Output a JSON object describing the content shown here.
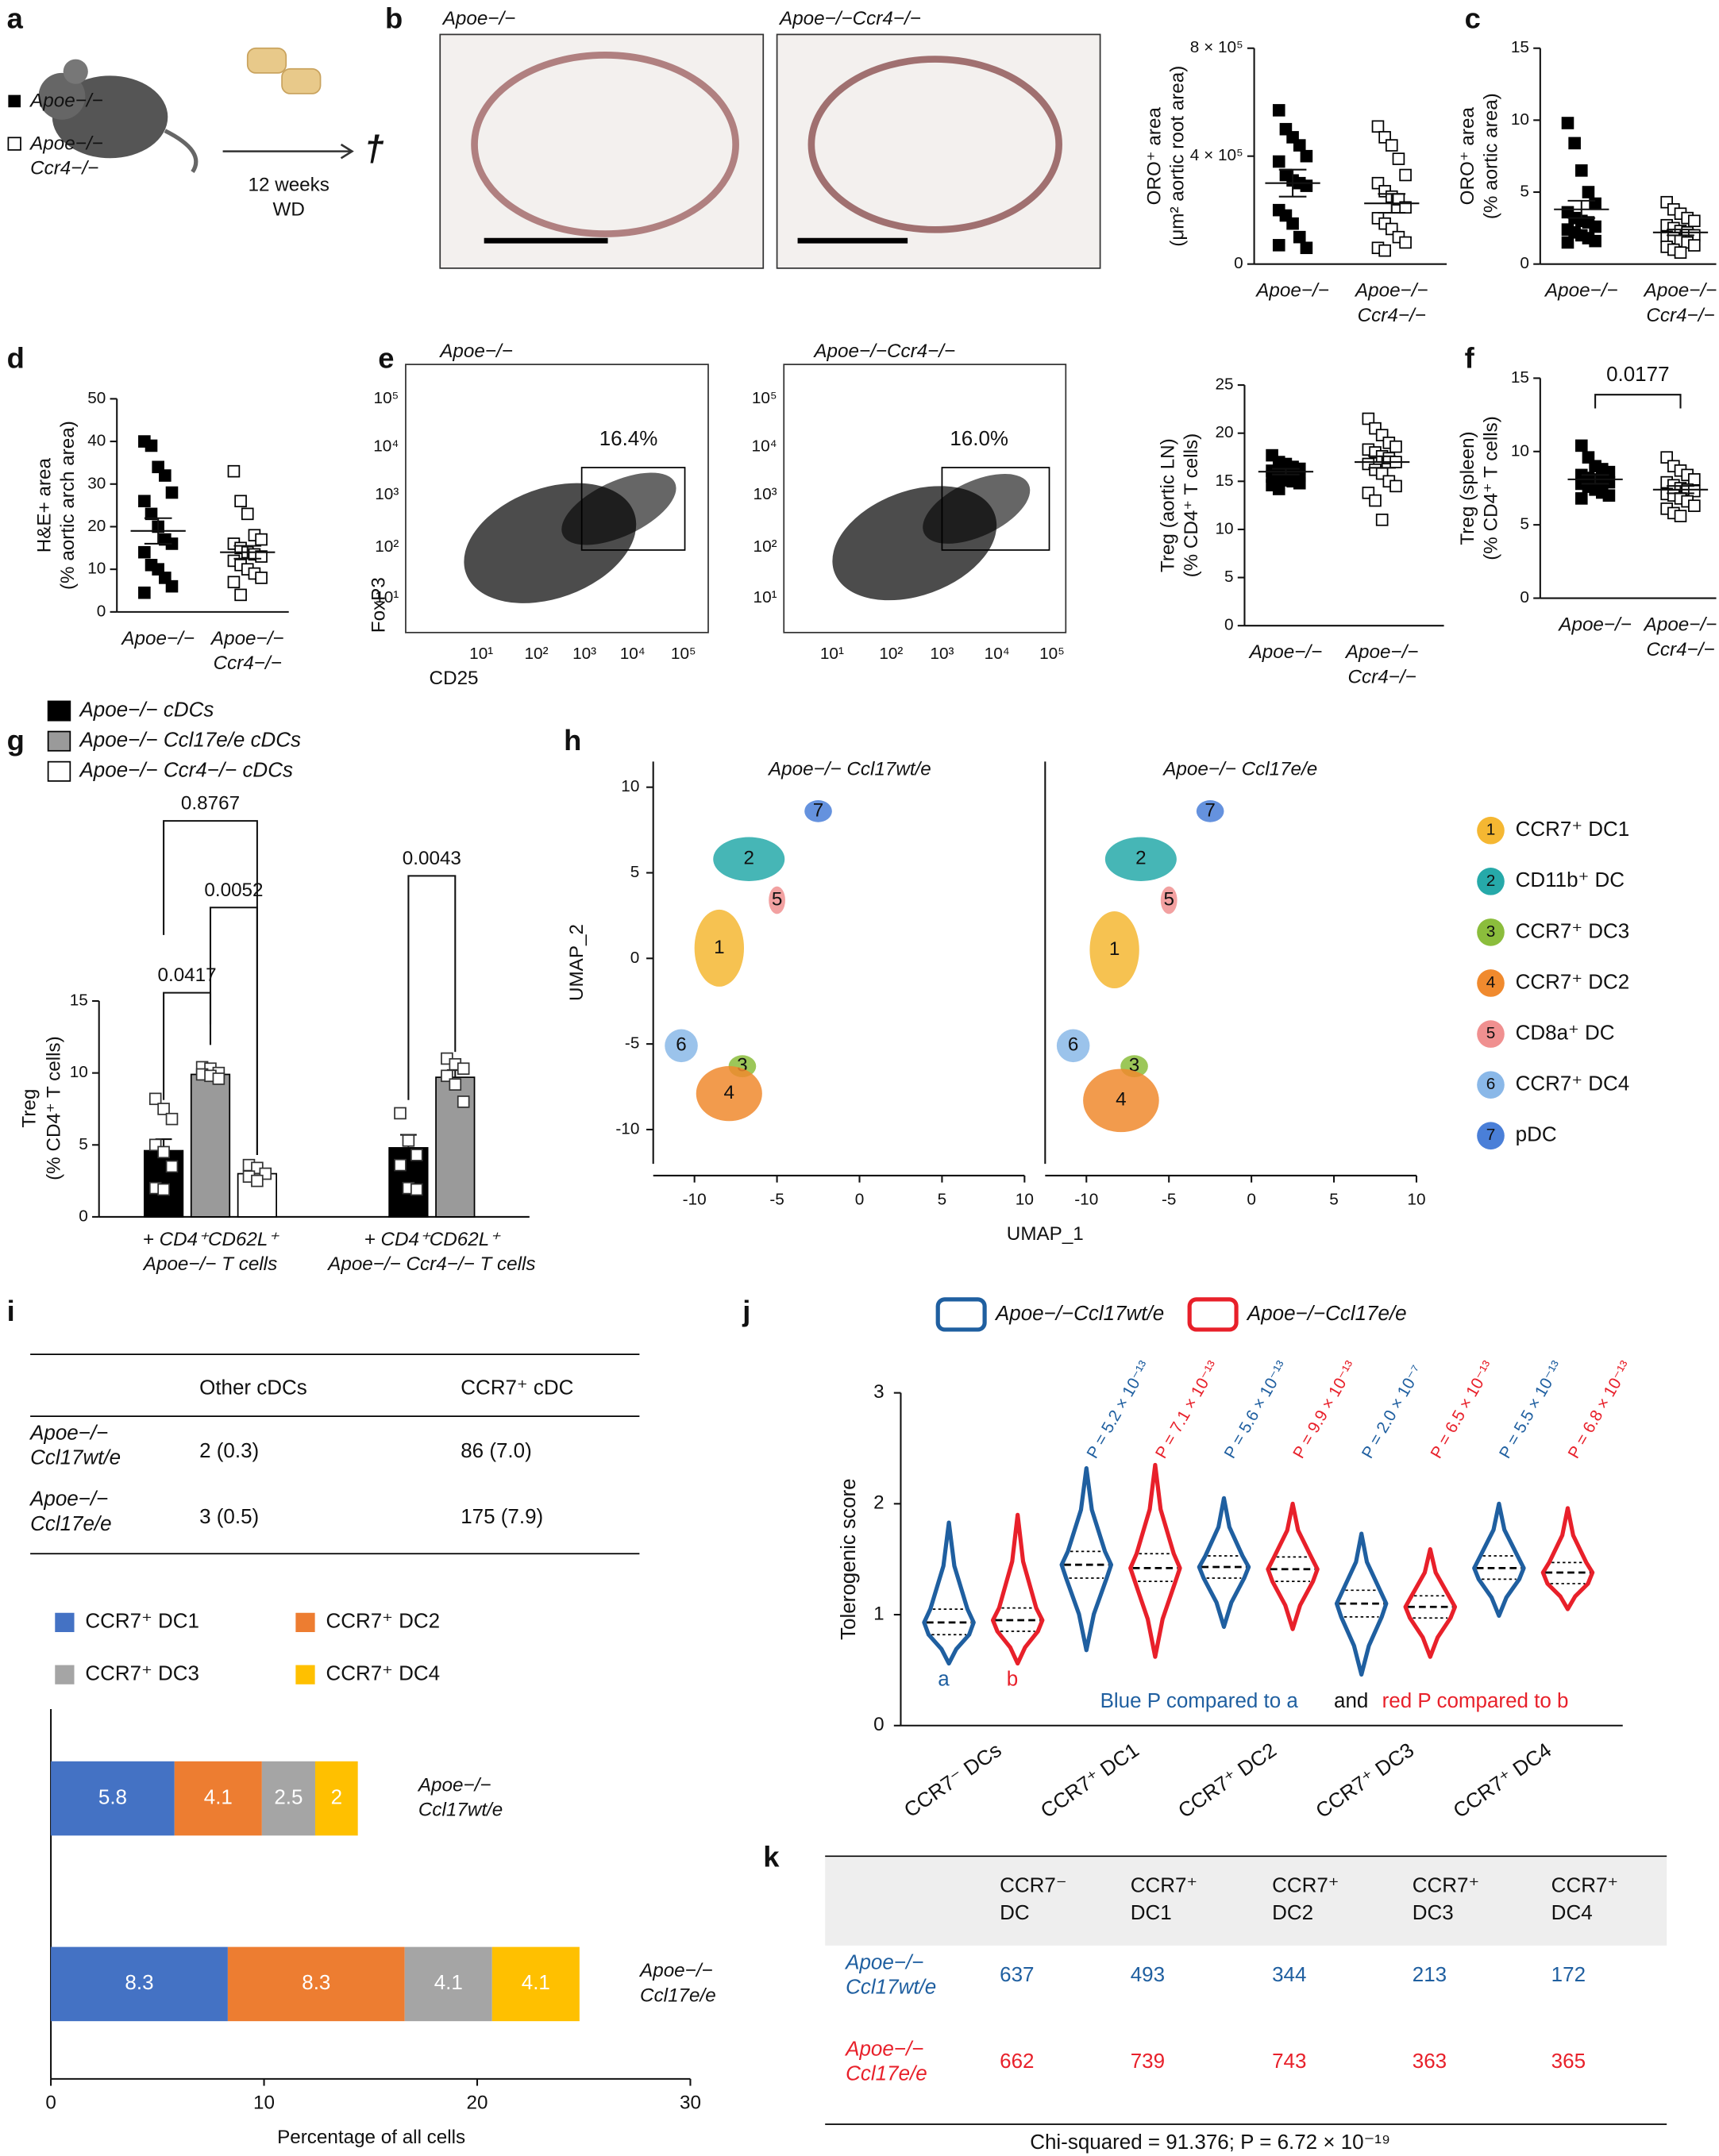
{
  "panels": [
    "a",
    "b",
    "c",
    "d",
    "e",
    "f",
    "g",
    "h",
    "i",
    "j",
    "k"
  ],
  "schematic": {
    "groups": [
      [
        "Apoe−/−"
      ],
      [
        "Apoe−/−",
        "Ccr4−/−"
      ]
    ],
    "treatment": [
      "12 weeks",
      "WD"
    ],
    "endpoint": "†"
  },
  "histology": {
    "titles": [
      "Apoe−/−",
      "Apoe−/−Ccr4−/−"
    ]
  },
  "flow": {
    "titles": [
      "Apoe−/−",
      "Apoe−/−Ccr4−/−"
    ],
    "gates": [
      "16.4%",
      "16.0%"
    ],
    "ticks": [
      "10¹",
      "10²",
      "10³",
      "10⁴",
      "10⁵"
    ],
    "xlabel": "CD25",
    "ylabel": "FoxP3"
  },
  "chart_data": [
    {
      "type": "dot",
      "ylabel": [
        "ORO⁺ area",
        "(μm² aortic root area)"
      ],
      "categories": [
        [
          "Apoe−/−"
        ],
        [
          "Apoe−/−",
          "Ccr4−/−"
        ]
      ],
      "markers": [
        "filled",
        "open"
      ],
      "ylim": [
        0,
        800000
      ],
      "yticks": [
        0,
        {
          "value": 400000,
          "label": "4 × 10⁵"
        },
        {
          "value": 800000,
          "label": "8 × 10⁵"
        }
      ],
      "values": [
        [
          570000,
          500000,
          470000,
          440000,
          400000,
          380000,
          330000,
          310000,
          300000,
          290000,
          200000,
          180000,
          150000,
          100000,
          60000,
          70000
        ],
        [
          510000,
          470000,
          440000,
          390000,
          330000,
          300000,
          270000,
          250000,
          240000,
          210000,
          170000,
          150000,
          130000,
          100000,
          80000,
          60000,
          50000
        ]
      ],
      "means": [
        300000,
        225000
      ],
      "sems": [
        50000,
        35000
      ]
    },
    {
      "type": "dot",
      "ylabel": [
        "ORO⁺ area",
        "(% aortic area)"
      ],
      "categories": [
        [
          "Apoe−/−"
        ],
        [
          "Apoe−/−",
          "Ccr4−/−"
        ]
      ],
      "markers": [
        "filled",
        "open"
      ],
      "ylim": [
        0,
        15
      ],
      "yticks": [
        0,
        5,
        10,
        15
      ],
      "values": [
        [
          9.8,
          8.4,
          6.5,
          5.0,
          4.2,
          3.6,
          3.2,
          3.0,
          2.9,
          2.6,
          2.4,
          2.2,
          2.0,
          1.8,
          1.6,
          1.5
        ],
        [
          4.3,
          3.8,
          3.5,
          3.2,
          3.0,
          2.7,
          2.5,
          2.3,
          2.2,
          2.0,
          1.9,
          1.8,
          1.6,
          1.5,
          1.3,
          1.2,
          1.0,
          0.8
        ]
      ],
      "means": [
        3.8,
        2.2
      ],
      "sems": [
        0.6,
        0.2
      ]
    },
    {
      "type": "dot",
      "ylabel": [
        "H&E+ area",
        "(% aortic arch area)"
      ],
      "categories": [
        [
          "Apoe−/−"
        ],
        [
          "Apoe−/−",
          "Ccr4−/−"
        ]
      ],
      "markers": [
        "filled",
        "open"
      ],
      "ylim": [
        0,
        50
      ],
      "yticks": [
        0,
        10,
        20,
        30,
        40,
        50
      ],
      "values": [
        [
          40,
          39,
          34,
          32,
          28,
          26,
          23,
          20,
          17,
          16,
          14,
          11,
          10,
          8,
          6,
          4.5
        ],
        [
          33,
          26,
          23,
          18,
          17,
          16,
          15,
          14,
          13.5,
          13,
          12,
          11,
          10,
          9,
          8,
          7,
          4
        ]
      ],
      "means": [
        19,
        14
      ],
      "sems": [
        3,
        1.5
      ]
    },
    {
      "type": "dot",
      "ylabel": [
        "Treg (aortic LN)",
        "(% CD4⁺ T cells)"
      ],
      "categories": [
        [
          "Apoe−/−"
        ],
        [
          "Apoe−/−",
          "Ccr4−/−"
        ]
      ],
      "markers": [
        "filled",
        "open"
      ],
      "ylim": [
        0,
        25
      ],
      "yticks": [
        0,
        5,
        10,
        15,
        20,
        25
      ],
      "values": [
        [
          17.7,
          17,
          16.8,
          16.5,
          16.3,
          16.1,
          16,
          15.9,
          15.8,
          15.6,
          15.5,
          15.3,
          15.1,
          15,
          14.8,
          14.6,
          14.2
        ],
        [
          21.5,
          20.5,
          19.8,
          19,
          18.6,
          18.3,
          18,
          17.6,
          17.4,
          17,
          16.8,
          16.2,
          15.8,
          15,
          14.5,
          13.8,
          13,
          11
        ]
      ],
      "means": [
        16,
        17
      ],
      "sems": [
        0.3,
        0.6
      ]
    },
    {
      "type": "dot",
      "ylabel": [
        "Treg (spleen)",
        "(% CD4⁺ T cells)"
      ],
      "categories": [
        [
          "Apoe−/−"
        ],
        [
          "Apoe−/−",
          "Ccr4−/−"
        ]
      ],
      "markers": [
        "filled",
        "open"
      ],
      "ylim": [
        0,
        15
      ],
      "yticks": [
        0,
        5,
        10,
        15
      ],
      "annotation": "0.0177",
      "values": [
        [
          10.4,
          9.6,
          9,
          8.8,
          8.6,
          8.4,
          8.2,
          8.1,
          8,
          7.9,
          7.8,
          7.6,
          7.4,
          7.2,
          7,
          6.8
        ],
        [
          9.6,
          9,
          8.7,
          8.4,
          8.1,
          7.9,
          7.7,
          7.5,
          7.4,
          7.3,
          7.1,
          7,
          6.8,
          6.6,
          6.3,
          6.1,
          5.8,
          5.6
        ]
      ],
      "means": [
        8.1,
        7.4
      ],
      "sems": [
        0.3,
        0.25
      ]
    },
    {
      "type": "bar",
      "ylabel": [
        "Treg",
        "(% CD4⁺ T cells)"
      ],
      "ylim": [
        0,
        15
      ],
      "yticks": [
        0,
        5,
        10,
        15
      ],
      "groups": [
        [
          "+ CD4⁺CD62L⁺",
          "Apoe−/− T cells"
        ],
        [
          "+ CD4⁺CD62L⁺",
          "Apoe−/− Ccr4−/− T cells"
        ]
      ],
      "series": [
        {
          "name": "Apoe−/− cDCs",
          "color": "#000000",
          "values": [
            4.6,
            4.8
          ],
          "errors": [
            0.8,
            0.9
          ],
          "points": [
            [
              8.2,
              7.5,
              6.8,
              5,
              4.5,
              3.5,
              2,
              1.9
            ],
            [
              7.2,
              5.3,
              4.3,
              3.6,
              2,
              1.9
            ]
          ]
        },
        {
          "name": "Apoe−/− Ccl17e/e cDCs",
          "color": "#9a9a9a",
          "values": [
            9.9,
            9.7
          ],
          "errors": [
            0.15,
            0.5
          ],
          "points": [
            [
              10.4,
              10.3,
              10,
              9.9,
              9.8,
              9.6
            ],
            [
              11,
              10.6,
              10.3,
              9.8,
              9.2,
              8
            ]
          ]
        },
        {
          "name": "Apoe−/− Ccr4−/− cDCs",
          "color": "#ffffff",
          "values": [
            3.0,
            null
          ],
          "errors": [
            0.3,
            null
          ],
          "points": [
            [
              3.6,
              3.4,
              3.0,
              2.8,
              2.5
            ],
            []
          ]
        }
      ],
      "comparisons": [
        "0.8767",
        "0.0052",
        "0.0417",
        "0.0043"
      ]
    },
    {
      "type": "umap",
      "xlabel": "UMAP_1",
      "ylabel": "UMAP_2",
      "xlim": [
        -12.5,
        10
      ],
      "ylim": [
        -12,
        11.5
      ],
      "xticks": [
        -10,
        -5,
        0,
        5,
        10
      ],
      "yticks": [
        -10,
        -5,
        0,
        5,
        10
      ],
      "panels": [
        "Apoe−/− Ccl17wt/e",
        "Apoe−/− Ccl17e/e"
      ],
      "series": [
        {
          "name": "CCR7⁺ DC1",
          "label": "1",
          "color": "#f5b732",
          "x": [
            -8.5,
            -8.3
          ],
          "y": [
            0.6,
            0.5
          ]
        },
        {
          "name": "CD11b⁺ DC",
          "label": "2",
          "color": "#26a9a9",
          "x": [
            -6.7,
            -6.7
          ],
          "y": [
            5.8,
            5.8
          ]
        },
        {
          "name": "CCR7⁺ DC3",
          "label": "3",
          "color": "#8bbd3c",
          "x": [
            -7.1,
            -7.1
          ],
          "y": [
            -6.3,
            -6.3
          ]
        },
        {
          "name": "CCR7⁺ DC2",
          "label": "4",
          "color": "#f08a2e",
          "x": [
            -7.9,
            -7.9
          ],
          "y": [
            -7.9,
            -8.3
          ]
        },
        {
          "name": "CD8a⁺ DC",
          "label": "5",
          "color": "#f09090",
          "x": [
            -5,
            -5
          ],
          "y": [
            3.4,
            3.4
          ]
        },
        {
          "name": "CCR7⁺ DC4",
          "label": "6",
          "color": "#8ab8e8",
          "x": [
            -10.8,
            -10.8
          ],
          "y": [
            -5.1,
            -5.1
          ]
        },
        {
          "name": "pDC",
          "label": "7",
          "color": "#4a7fd8",
          "x": [
            -2.5,
            -2.5
          ],
          "y": [
            8.6,
            8.6
          ]
        }
      ]
    },
    {
      "type": "hbar-stacked",
      "xlabel": "Percentage of all cells",
      "xlim": [
        0,
        30
      ],
      "xticks": [
        0,
        10,
        20,
        30
      ],
      "categories": [
        [
          "Apoe−/−",
          "Ccl17wt/e"
        ],
        [
          "Apoe−/−",
          "Ccl17e/e"
        ]
      ],
      "series": [
        {
          "name": "CCR7⁺ DC1",
          "color": "#4472c4",
          "values": [
            5.8,
            8.3
          ]
        },
        {
          "name": "CCR7⁺ DC2",
          "color": "#ed7d31",
          "values": [
            4.1,
            8.3
          ]
        },
        {
          "name": "CCR7⁺ DC3",
          "color": "#a5a5a5",
          "values": [
            2.5,
            4.1
          ]
        },
        {
          "name": "CCR7⁺ DC4",
          "color": "#ffc000",
          "values": [
            2.0,
            4.1
          ]
        }
      ]
    },
    {
      "type": "violin",
      "ylabel": "Tolerogenic score",
      "ylim": [
        0,
        3
      ],
      "yticks": [
        0,
        1,
        2,
        3
      ],
      "categories": [
        "CCR7⁻ DCs",
        "CCR7⁺ DC1",
        "CCR7⁺ DC2",
        "CCR7⁺ DC3",
        "CCR7⁺ DC4"
      ],
      "series": [
        {
          "name": "Apoe−/−Ccl17wt/e",
          "color": "#1f5fa0",
          "letter": "a",
          "min": [
            0.56,
            0.68,
            0.89,
            0.46,
            0.99
          ],
          "q1": [
            0.82,
            1.33,
            1.33,
            0.98,
            1.32
          ],
          "median": [
            0.93,
            1.45,
            1.43,
            1.1,
            1.42
          ],
          "q3": [
            1.05,
            1.57,
            1.53,
            1.22,
            1.53
          ],
          "max": [
            1.83,
            2.32,
            2.05,
            1.73,
            2.0
          ],
          "p_labels": [
            null,
            "P = 5.2 × 10⁻¹³",
            "P = 5.6 × 10⁻¹³",
            "P = 2.0 × 10⁻⁷",
            "P = 5.5 × 10⁻¹³"
          ]
        },
        {
          "name": "Apoe−/−Ccl17e/e",
          "color": "#e8202a",
          "letter": "b",
          "min": [
            0.56,
            0.62,
            0.87,
            0.62,
            1.05
          ],
          "q1": [
            0.85,
            1.3,
            1.3,
            0.97,
            1.28
          ],
          "median": [
            0.95,
            1.42,
            1.41,
            1.07,
            1.38
          ],
          "q3": [
            1.06,
            1.55,
            1.52,
            1.17,
            1.47
          ],
          "max": [
            1.9,
            2.35,
            2.0,
            1.59,
            1.96
          ],
          "p_labels": [
            null,
            "P = 7.1 × 10⁻¹³",
            "P = 9.9 × 10⁻¹³",
            "P = 6.5 × 10⁻¹³",
            "P = 6.8 × 10⁻¹³"
          ]
        }
      ],
      "note": [
        "Blue P compared to a",
        "and",
        "red P compared to b"
      ]
    }
  ],
  "table_i": {
    "columns": [
      "Other cDCs",
      "CCR7⁺ cDC"
    ],
    "rows": [
      {
        "name": [
          "Apoe−/−",
          "Ccl17wt/e"
        ],
        "cells": [
          "2 (0.3)",
          "86 (7.0)"
        ]
      },
      {
        "name": [
          "Apoe−/−",
          "Ccl17e/e"
        ],
        "cells": [
          "3 (0.5)",
          "175 (7.9)"
        ]
      }
    ]
  },
  "table_k": {
    "columns": [
      [
        "CCR7⁻",
        "DC"
      ],
      [
        "CCR7⁺",
        "DC1"
      ],
      [
        "CCR7⁺",
        "DC2"
      ],
      [
        "CCR7⁺",
        "DC3"
      ],
      [
        "CCR7⁺",
        "DC4"
      ]
    ],
    "rows": [
      {
        "name": [
          "Apoe−/−",
          "Ccl17wt/e"
        ],
        "color": "#1f5fa0",
        "values": [
          637,
          493,
          344,
          213,
          172
        ]
      },
      {
        "name": [
          "Apoe−/−",
          "Ccl17e/e"
        ],
        "color": "#e8202a",
        "values": [
          662,
          739,
          743,
          363,
          365
        ]
      }
    ],
    "footer": "Chi-squared = 91.376; P = 6.72 × 10⁻¹⁹"
  }
}
